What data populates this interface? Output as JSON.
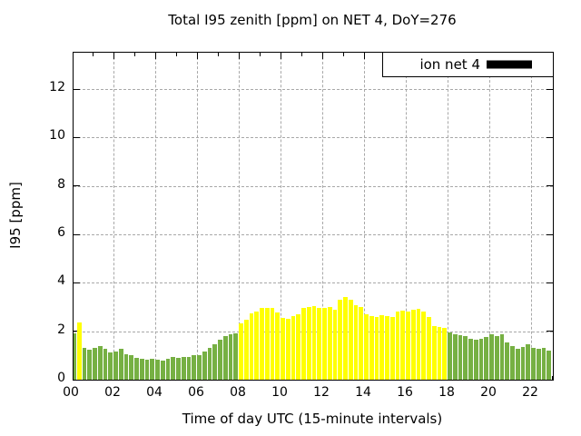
{
  "title": "Total I95 zenith [ppm] on NET 4, DoY=276",
  "legend": {
    "label": "ion net 4",
    "swatch_color": "#000000"
  },
  "axes": {
    "x_label": "Time of day UTC (15-minute intervals)",
    "y_label": "I95 [ppm]",
    "x_tick_labels": [
      "00",
      "02",
      "04",
      "06",
      "08",
      "10",
      "12",
      "14",
      "16",
      "18",
      "20",
      "22"
    ],
    "x_tick_hours": [
      0,
      2,
      4,
      6,
      8,
      10,
      12,
      14,
      16,
      18,
      20,
      22
    ],
    "y_tick_values": [
      0,
      2,
      4,
      6,
      8,
      10,
      12
    ],
    "y_max": 13.5,
    "grid": true
  },
  "chart_data": {
    "type": "bar",
    "title": "Total I95 zenith [ppm] on NET 4, DoY=276",
    "xlabel": "Time of day UTC (15-minute intervals)",
    "ylabel": "I95 [ppm]",
    "legend_entries": [
      {
        "name": "ion net 4",
        "swatch": "#000000"
      }
    ],
    "interval_minutes": 15,
    "xlim_hours": [
      0,
      23.05
    ],
    "ylim": [
      0,
      13.5
    ],
    "y_ticks": [
      0,
      2,
      4,
      6,
      8,
      10,
      12
    ],
    "x_ticks": [
      "00",
      "02",
      "04",
      "06",
      "08",
      "10",
      "12",
      "14",
      "16",
      "18",
      "20",
      "22"
    ],
    "x": [
      "00:00",
      "00:15",
      "00:30",
      "00:45",
      "01:00",
      "01:15",
      "01:30",
      "01:45",
      "02:00",
      "02:15",
      "02:30",
      "02:45",
      "03:00",
      "03:15",
      "03:30",
      "03:45",
      "04:00",
      "04:15",
      "04:30",
      "04:45",
      "05:00",
      "05:15",
      "05:30",
      "05:45",
      "06:00",
      "06:15",
      "06:30",
      "06:45",
      "07:00",
      "07:15",
      "07:30",
      "07:45",
      "08:00",
      "08:15",
      "08:30",
      "08:45",
      "09:00",
      "09:15",
      "09:30",
      "09:45",
      "10:00",
      "10:15",
      "10:30",
      "10:45",
      "11:00",
      "11:15",
      "11:30",
      "11:45",
      "12:00",
      "12:15",
      "12:30",
      "12:45",
      "13:00",
      "13:15",
      "13:30",
      "13:45",
      "14:00",
      "14:15",
      "14:30",
      "14:45",
      "15:00",
      "15:15",
      "15:30",
      "15:45",
      "16:00",
      "16:15",
      "16:30",
      "16:45",
      "17:00",
      "17:15",
      "17:30",
      "17:45",
      "18:00",
      "18:15",
      "18:30",
      "18:45",
      "19:00",
      "19:15",
      "19:30",
      "19:45",
      "20:00",
      "20:15",
      "20:30",
      "20:45",
      "21:00",
      "21:15",
      "21:30",
      "21:45",
      "22:00",
      "22:15",
      "22:30",
      "22:45"
    ],
    "values": [
      1.9,
      2.35,
      1.3,
      1.25,
      1.33,
      1.38,
      1.28,
      1.12,
      1.18,
      1.28,
      1.05,
      1.0,
      0.9,
      0.85,
      0.82,
      0.85,
      0.82,
      0.78,
      0.88,
      0.95,
      0.9,
      0.92,
      0.95,
      1.02,
      1.0,
      1.15,
      1.3,
      1.45,
      1.65,
      1.8,
      1.88,
      1.9,
      2.33,
      2.47,
      2.72,
      2.82,
      2.98,
      2.95,
      2.95,
      2.76,
      2.54,
      2.5,
      2.63,
      2.69,
      2.95,
      3.01,
      3.05,
      2.95,
      2.98,
      3.0,
      2.9,
      3.3,
      3.4,
      3.3,
      3.09,
      3.0,
      2.69,
      2.63,
      2.6,
      2.67,
      2.63,
      2.59,
      2.82,
      2.85,
      2.82,
      2.88,
      2.92,
      2.8,
      2.59,
      2.21,
      2.16,
      2.12,
      1.96,
      1.87,
      1.83,
      1.81,
      1.7,
      1.65,
      1.68,
      1.75,
      1.89,
      1.81,
      1.87,
      1.55,
      1.39,
      1.26,
      1.36,
      1.46,
      1.3,
      1.26,
      1.3,
      1.21
    ],
    "bar_colors": [
      "g",
      "y",
      "g",
      "g",
      "g",
      "g",
      "g",
      "g",
      "g",
      "g",
      "g",
      "g",
      "g",
      "g",
      "g",
      "g",
      "g",
      "g",
      "g",
      "g",
      "g",
      "g",
      "g",
      "g",
      "g",
      "g",
      "g",
      "g",
      "g",
      "g",
      "g",
      "g",
      "y",
      "y",
      "y",
      "y",
      "y",
      "y",
      "y",
      "y",
      "y",
      "y",
      "y",
      "y",
      "y",
      "y",
      "y",
      "y",
      "y",
      "y",
      "y",
      "y",
      "y",
      "y",
      "y",
      "y",
      "y",
      "y",
      "y",
      "y",
      "y",
      "y",
      "y",
      "y",
      "y",
      "y",
      "y",
      "y",
      "y",
      "y",
      "y",
      "y",
      "g",
      "g",
      "g",
      "g",
      "g",
      "g",
      "g",
      "g",
      "g",
      "g",
      "g",
      "g",
      "g",
      "g",
      "g",
      "g",
      "g",
      "g",
      "g",
      "g"
    ],
    "color_map": {
      "g": "#76b043",
      "y": "#ffff00"
    }
  },
  "colors": {
    "grid": "#a8a8a8",
    "axis": "#000000",
    "background": "#ffffff"
  }
}
